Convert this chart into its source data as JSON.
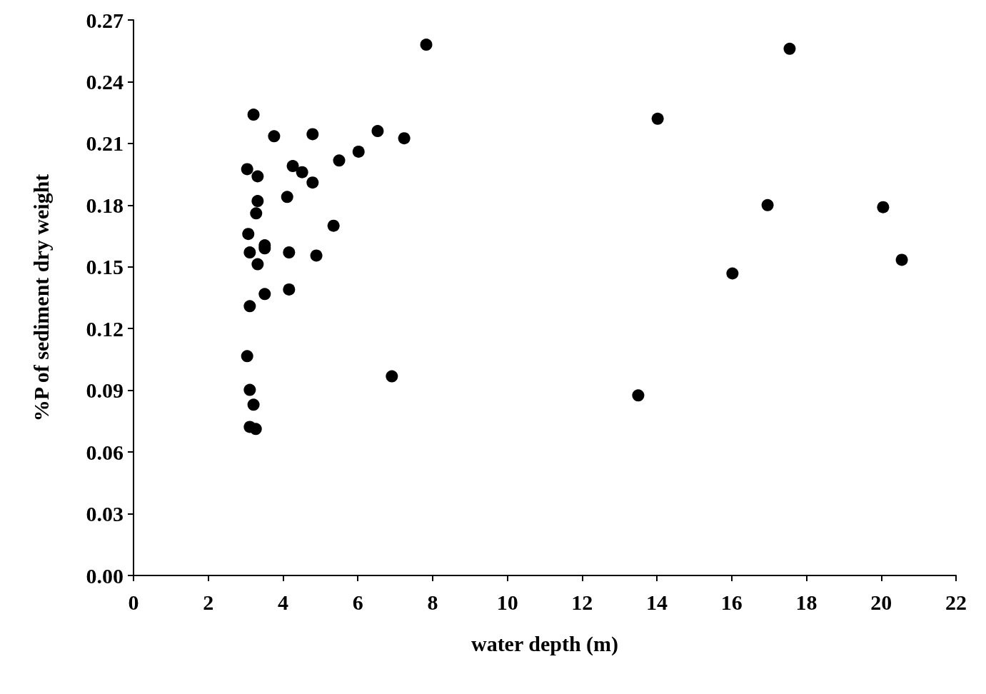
{
  "chart_data": {
    "type": "scatter",
    "xlabel": "water depth (m)",
    "ylabel": "%P of sediment dry weight",
    "xlim": [
      0,
      22
    ],
    "xticks": [
      0,
      2,
      4,
      6,
      8,
      10,
      12,
      14,
      16,
      18,
      20,
      22
    ],
    "ylim": [
      0,
      0.27
    ],
    "yticks": [
      {
        "value": 0,
        "label": "0.00"
      },
      0.03,
      0.06,
      0.09,
      0.12,
      0.15,
      0.18,
      0.21,
      0.24,
      0.27
    ],
    "grid": false,
    "marker": "circle",
    "series": [
      {
        "color": "#000000",
        "x": [
          7.83,
          17.55,
          3.21,
          14.02,
          3.76,
          4.79,
          6.53,
          7.24,
          6.02,
          5.5,
          4.26,
          4.51,
          3.04,
          3.32,
          4.79,
          3.32,
          4.11,
          3.28,
          16.96,
          20.05,
          5.35,
          3.07,
          3.51,
          3.51,
          3.11,
          4.16,
          4.89,
          3.32,
          20.55,
          16.02,
          4.16,
          3.51,
          3.11,
          3.04,
          6.91,
          3.11,
          13.5,
          3.21,
          3.11,
          3.27
        ],
        "values": [
          0.258,
          0.256,
          0.224,
          0.222,
          0.2135,
          0.2145,
          0.216,
          0.2125,
          0.206,
          0.2017,
          0.199,
          0.196,
          0.1975,
          0.194,
          0.191,
          0.182,
          0.184,
          0.176,
          0.18,
          0.179,
          0.17,
          0.166,
          0.1605,
          0.159,
          0.157,
          0.157,
          0.1555,
          0.1513,
          0.1534,
          0.1468,
          0.139,
          0.1368,
          0.1309,
          0.1066,
          0.0968,
          0.0902,
          0.0875,
          0.083,
          0.0722,
          0.0712
        ]
      }
    ]
  }
}
